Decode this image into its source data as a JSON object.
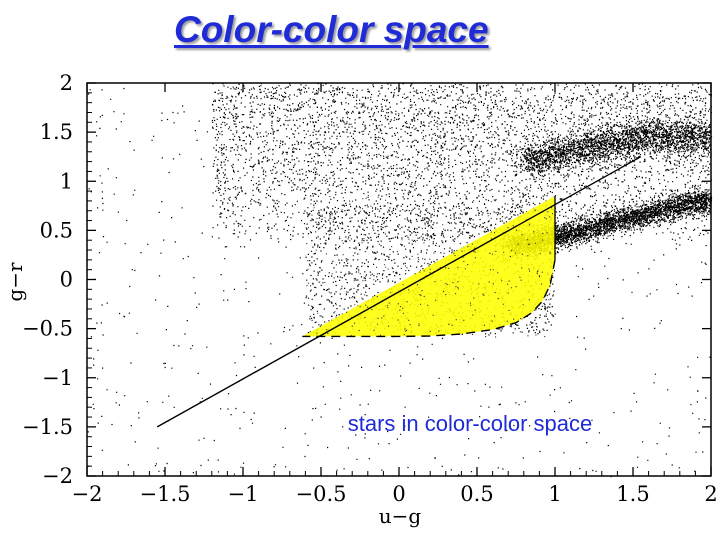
{
  "title": "Color-color space",
  "chart_data": {
    "type": "scatter",
    "xlabel": "u−g",
    "ylabel": "g−r",
    "xlim": [
      -2,
      2
    ],
    "ylim": [
      -2,
      2
    ],
    "xticks": [
      "−2",
      "−1.5",
      "−1",
      "−0.5",
      "0",
      "0.5",
      "1",
      "1.5",
      "2"
    ],
    "yticks": [
      "2",
      "1.5",
      "1",
      "0.5",
      "0",
      "−0.5",
      "−1",
      "−1.5",
      "−2"
    ],
    "grid": false,
    "annotation": "stars in color-color space",
    "highlight_color": "#ffff00",
    "point_color": "#000000",
    "cut_line": {
      "x": [
        -1.55,
        1.55
      ],
      "y": [
        -1.5,
        1.25
      ]
    },
    "selection_region": {
      "upper_edge": {
        "x": [
          -0.62,
          1.0
        ],
        "y": [
          -0.58,
          0.85
        ]
      },
      "right_edge": {
        "x": [
          1.0,
          1.0
        ],
        "y": [
          0.85,
          0.2
        ]
      },
      "lower_curve": {
        "x": [
          1.0,
          0.97,
          0.92,
          0.85,
          0.75,
          0.6,
          0.4,
          0.2,
          0.0,
          -0.2,
          -0.62
        ],
        "y": [
          0.2,
          -0.05,
          -0.22,
          -0.34,
          -0.44,
          -0.51,
          -0.555,
          -0.575,
          -0.58,
          -0.58,
          -0.58
        ]
      }
    },
    "stellar_locus": {
      "x": [
        0.7,
        0.9,
        1.1,
        1.3,
        1.5,
        1.7,
        2.0
      ],
      "y": [
        0.35,
        0.4,
        0.47,
        0.56,
        0.64,
        0.72,
        0.82
      ]
    },
    "upper_branch": {
      "x": [
        0.8,
        1.2,
        1.6,
        2.0
      ],
      "y": [
        1.2,
        1.35,
        1.45,
        1.45
      ]
    }
  }
}
